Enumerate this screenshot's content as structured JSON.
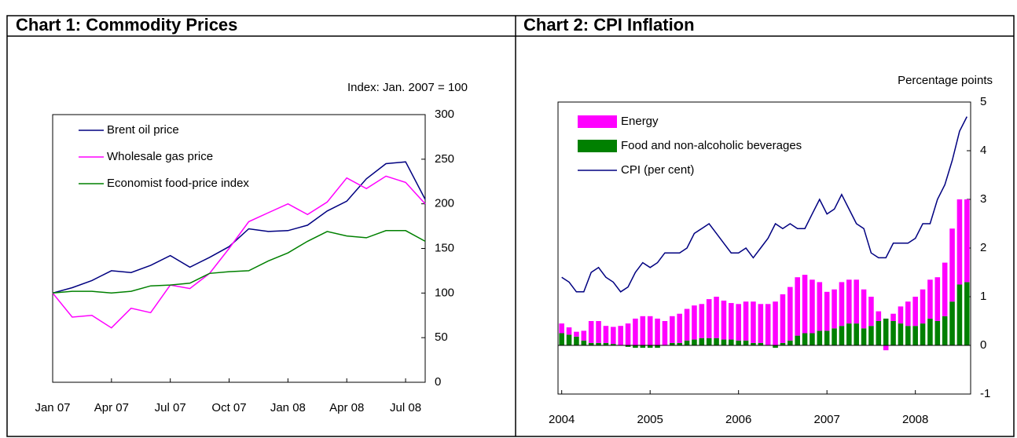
{
  "chart_data": [
    {
      "type": "line",
      "title": "Chart 1: Commodity Prices",
      "annotation": "Index:  Jan. 2007 = 100",
      "categories": [
        "Jan 07",
        null,
        null,
        "Apr 07",
        null,
        null,
        "Jul 07",
        null,
        null,
        "Oct 07",
        null,
        null,
        "Jan 08",
        null,
        null,
        "Apr 08",
        null,
        null,
        "Jul 08",
        null
      ],
      "series": [
        {
          "name": "Brent oil price",
          "color": "#000080",
          "values": [
            100,
            106,
            114,
            125,
            123,
            131,
            142,
            129,
            140,
            152,
            172,
            169,
            170,
            176,
            192,
            203,
            228,
            245,
            247,
            205
          ]
        },
        {
          "name": "Wholesale gas price",
          "color": "#ff00ff",
          "values": [
            100,
            73,
            75,
            61,
            83,
            78,
            109,
            105,
            122,
            150,
            180,
            190,
            200,
            188,
            202,
            229,
            217,
            231,
            224,
            200
          ]
        },
        {
          "name": "Economist food-price index",
          "color": "#008000",
          "values": [
            100,
            102,
            102,
            100,
            102,
            108,
            109,
            111,
            122,
            124,
            125,
            136,
            145,
            158,
            169,
            164,
            162,
            170,
            170,
            158
          ]
        }
      ],
      "ylim": [
        0,
        300
      ],
      "yticks": [
        0,
        50,
        100,
        150,
        200,
        250,
        300
      ],
      "grid": false,
      "legend": "top-left"
    },
    {
      "type": "combo",
      "title": "Chart 2: CPI Inflation",
      "y_axis_label": "Percentage points",
      "categories": [
        "2004",
        null,
        null,
        null,
        null,
        null,
        null,
        null,
        null,
        null,
        null,
        null,
        "2005",
        null,
        null,
        null,
        null,
        null,
        null,
        null,
        null,
        null,
        null,
        null,
        "2006",
        null,
        null,
        null,
        null,
        null,
        null,
        null,
        null,
        null,
        null,
        null,
        "2007",
        null,
        null,
        null,
        null,
        null,
        null,
        null,
        null,
        null,
        null,
        null,
        "2008",
        null,
        null,
        null,
        null,
        null,
        null,
        null
      ],
      "series": [
        {
          "name": "Energy",
          "kind": "bar",
          "color": "#ff00ff",
          "values": [
            0.2,
            0.15,
            0.1,
            0.2,
            0.45,
            0.45,
            0.35,
            0.35,
            0.4,
            0.45,
            0.55,
            0.6,
            0.6,
            0.55,
            0.5,
            0.55,
            0.6,
            0.65,
            0.7,
            0.7,
            0.8,
            0.85,
            0.8,
            0.75,
            0.75,
            0.8,
            0.85,
            0.8,
            0.85,
            0.9,
            1.0,
            1.1,
            1.2,
            1.2,
            1.1,
            1.0,
            0.8,
            0.8,
            0.9,
            0.9,
            0.9,
            0.8,
            0.6,
            0.2,
            -0.1,
            0.15,
            0.35,
            0.5,
            0.6,
            0.7,
            0.8,
            0.9,
            1.1,
            1.5,
            1.75,
            1.7
          ]
        },
        {
          "name": "Food and non-alcoholic beverages",
          "kind": "bar",
          "color": "#008000",
          "values": [
            0.25,
            0.22,
            0.18,
            0.1,
            0.05,
            0.05,
            0.05,
            0.03,
            0.0,
            -0.03,
            -0.05,
            -0.05,
            -0.05,
            -0.05,
            0.0,
            0.05,
            0.05,
            0.1,
            0.12,
            0.15,
            0.15,
            0.15,
            0.12,
            0.12,
            0.1,
            0.1,
            0.05,
            0.05,
            0.0,
            -0.05,
            0.05,
            0.1,
            0.2,
            0.25,
            0.25,
            0.3,
            0.3,
            0.35,
            0.4,
            0.45,
            0.45,
            0.35,
            0.4,
            0.5,
            0.55,
            0.5,
            0.45,
            0.4,
            0.4,
            0.45,
            0.55,
            0.5,
            0.6,
            0.9,
            1.25,
            1.3
          ]
        },
        {
          "name": "CPI (per cent)",
          "kind": "line",
          "color": "#000080",
          "values": [
            1.4,
            1.3,
            1.1,
            1.1,
            1.5,
            1.6,
            1.4,
            1.3,
            1.1,
            1.2,
            1.5,
            1.7,
            1.6,
            1.7,
            1.9,
            1.9,
            1.9,
            2.0,
            2.3,
            2.4,
            2.5,
            2.3,
            2.1,
            1.9,
            1.9,
            2.0,
            1.8,
            2.0,
            2.2,
            2.5,
            2.4,
            2.5,
            2.4,
            2.4,
            2.7,
            3.0,
            2.7,
            2.8,
            3.1,
            2.8,
            2.5,
            2.4,
            1.9,
            1.8,
            1.8,
            2.1,
            2.1,
            2.1,
            2.2,
            2.5,
            2.5,
            3.0,
            3.3,
            3.8,
            4.4,
            4.7
          ]
        }
      ],
      "ylim": [
        -1,
        5
      ],
      "yticks": [
        -1,
        0,
        1,
        2,
        3,
        4,
        5
      ],
      "grid": false,
      "legend": "top-left"
    }
  ]
}
